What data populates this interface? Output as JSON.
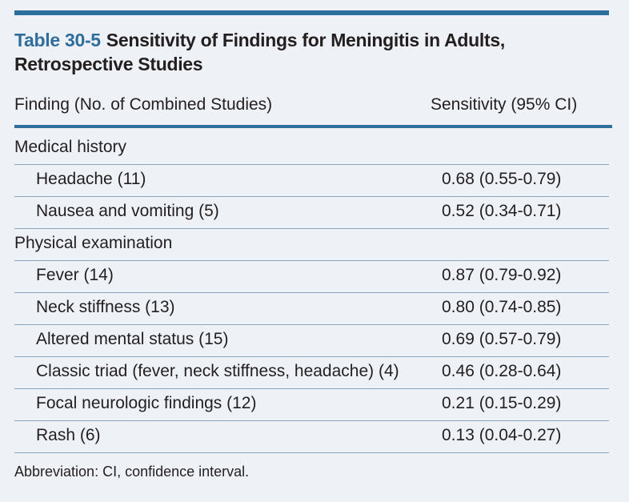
{
  "title": {
    "label": "Table 30-5",
    "text": "Sensitivity of Findings for Meningitis in Adults, Retrospective Studies"
  },
  "columns": {
    "finding": "Finding (No. of Combined Studies)",
    "sensitivity": "Sensitivity (95% CI)"
  },
  "rows": [
    {
      "type": "section",
      "finding": "Medical history",
      "sensitivity": ""
    },
    {
      "type": "item",
      "finding": "Headache (11)",
      "sensitivity": "0.68 (0.55-0.79)"
    },
    {
      "type": "item",
      "finding": "Nausea and vomiting (5)",
      "sensitivity": "0.52 (0.34-0.71)"
    },
    {
      "type": "section",
      "finding": "Physical examination",
      "sensitivity": ""
    },
    {
      "type": "item",
      "finding": "Fever (14)",
      "sensitivity": "0.87 (0.79-0.92)"
    },
    {
      "type": "item",
      "finding": "Neck stiffness (13)",
      "sensitivity": "0.80 (0.74-0.85)"
    },
    {
      "type": "item",
      "finding": "Altered mental status (15)",
      "sensitivity": "0.69 (0.57-0.79)"
    },
    {
      "type": "item",
      "finding": "Classic triad (fever, neck stiffness, headache) (4)",
      "sensitivity": "0.46 (0.28-0.64)"
    },
    {
      "type": "item",
      "finding": "Focal neurologic findings (12)",
      "sensitivity": "0.21 (0.15-0.29)"
    },
    {
      "type": "item",
      "finding": "Rash (6)",
      "sensitivity": "0.13 (0.04-0.27)"
    }
  ],
  "footnote": "Abbreviation: CI, confidence interval.",
  "colors": {
    "accent": "#2e6e9c",
    "background": "#eef1f5",
    "text": "#231f20",
    "row_border": "#8aa6bf"
  }
}
